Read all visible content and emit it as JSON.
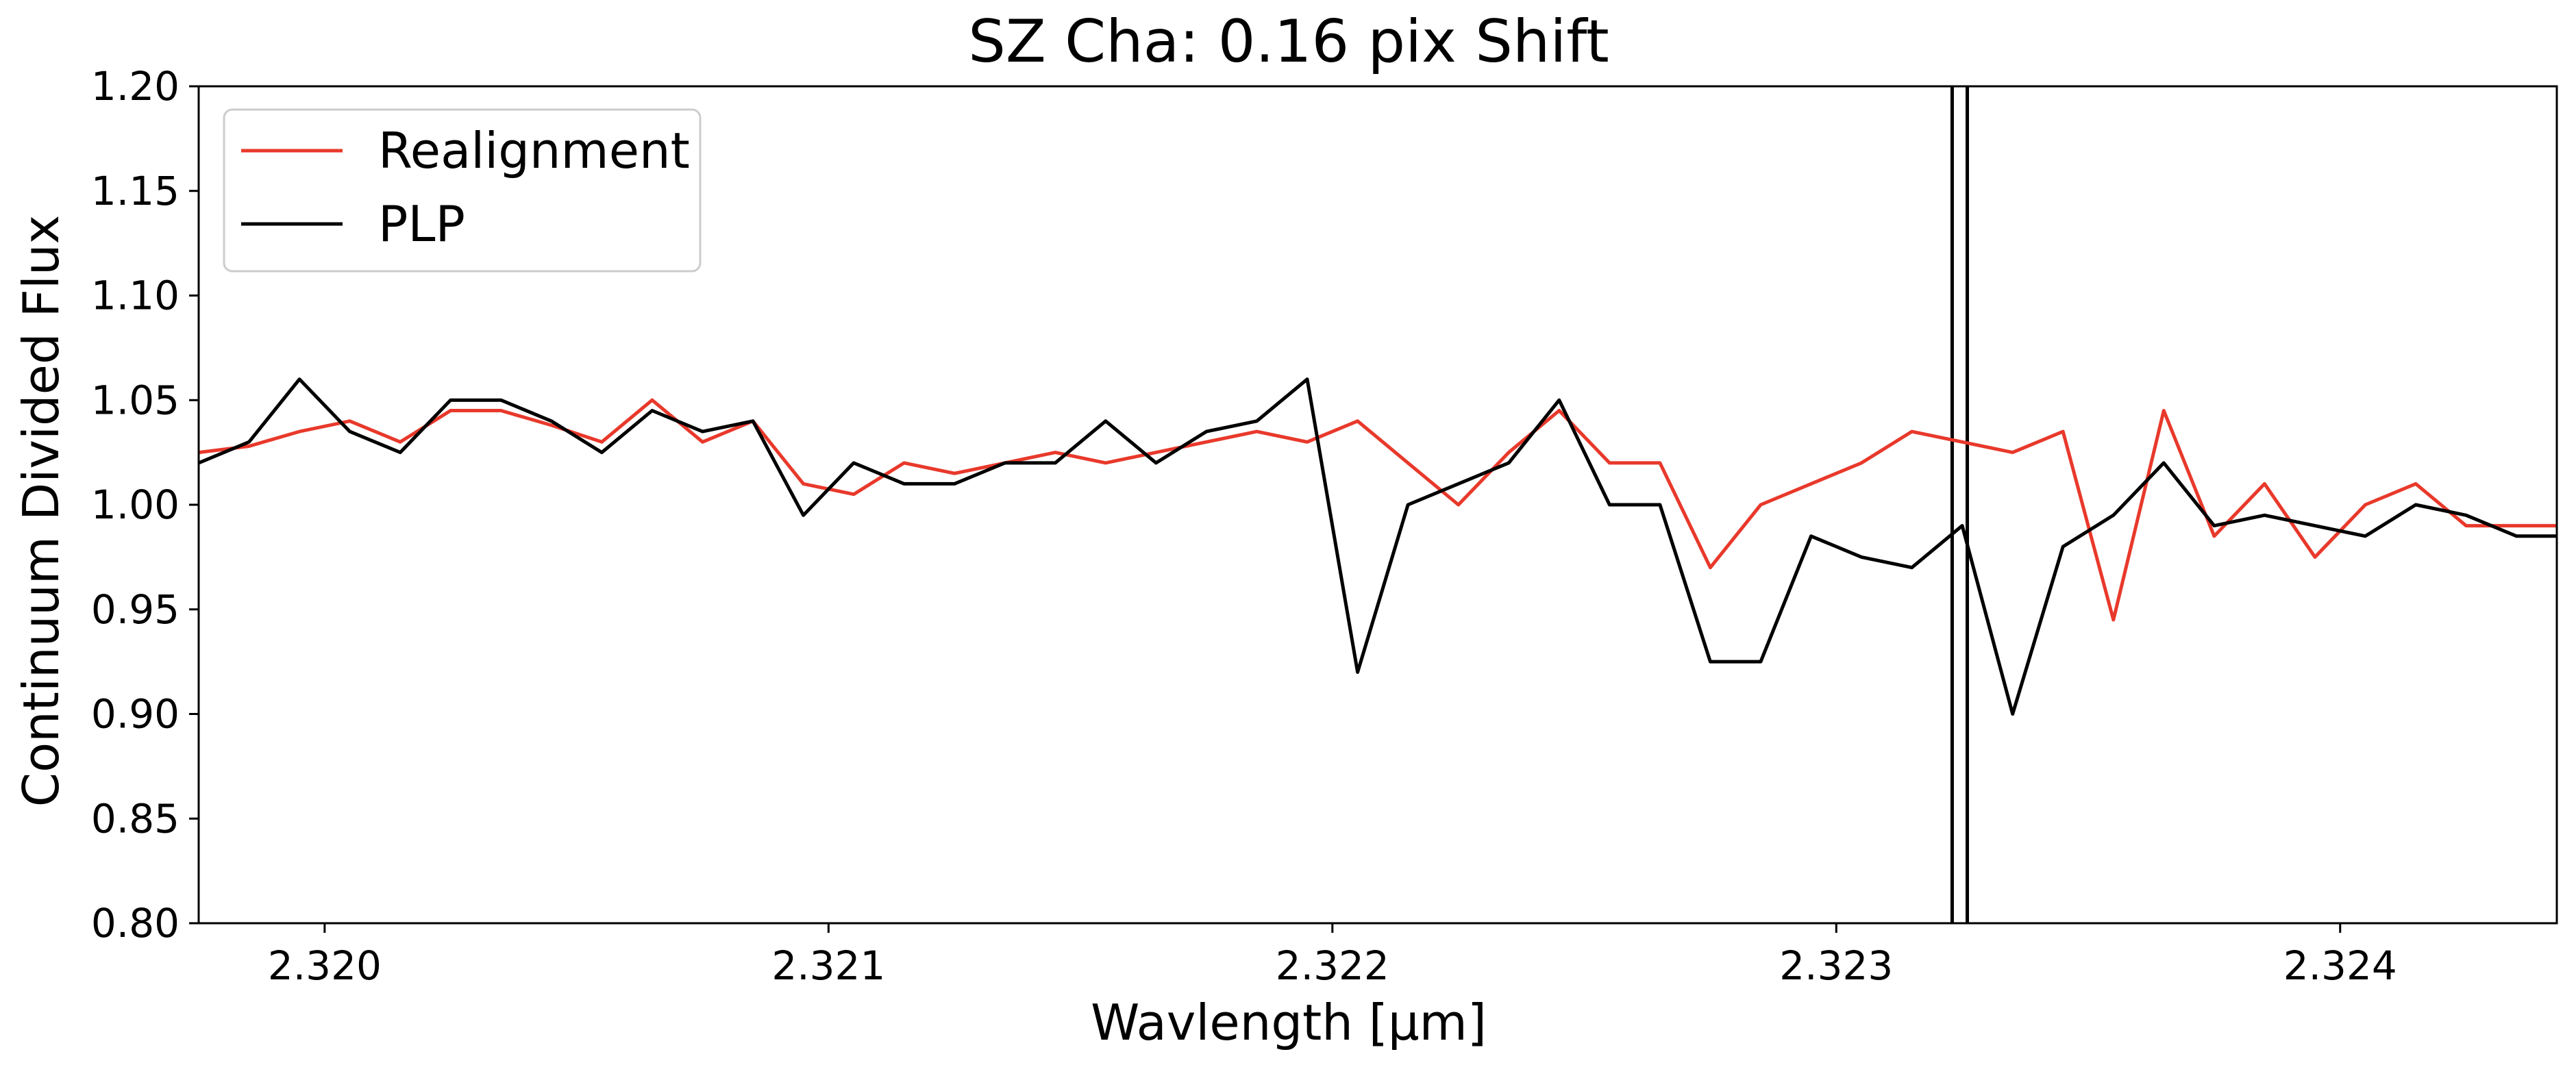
{
  "chart_data": {
    "type": "line",
    "title": "SZ Cha: 0.16 pix Shift",
    "xlabel": "Wavlength [μm]",
    "ylabel": "Continuum Divided Flux",
    "xlim": [
      2.31975,
      2.32443
    ],
    "ylim": [
      0.8,
      1.2
    ],
    "xticks": [
      2.32,
      2.321,
      2.322,
      2.323,
      2.324
    ],
    "xtick_labels": [
      "2.320",
      "2.321",
      "2.322",
      "2.323",
      "2.324"
    ],
    "yticks": [
      0.8,
      0.85,
      0.9,
      0.95,
      1.0,
      1.05,
      1.1,
      1.15,
      1.2
    ],
    "ytick_labels": [
      "0.80",
      "0.85",
      "0.90",
      "0.95",
      "1.00",
      "1.05",
      "1.10",
      "1.15",
      "1.20"
    ],
    "grid": false,
    "legend_position": "top-left",
    "vlines": [
      2.32323,
      2.32326
    ],
    "series": [
      {
        "name": "Realignment",
        "color": "#e8392b",
        "x": [
          2.31975,
          2.31985,
          2.31995,
          2.32005,
          2.32015,
          2.32025,
          2.32035,
          2.32045,
          2.32055,
          2.32065,
          2.32075,
          2.32085,
          2.32095,
          2.32105,
          2.32115,
          2.32125,
          2.32135,
          2.32145,
          2.32155,
          2.32165,
          2.32175,
          2.32185,
          2.32195,
          2.32205,
          2.32215,
          2.32225,
          2.32235,
          2.32245,
          2.32255,
          2.32265,
          2.32275,
          2.32285,
          2.32295,
          2.32305,
          2.32315,
          2.32325,
          2.32335,
          2.32345,
          2.32355,
          2.32365,
          2.32375,
          2.32385,
          2.32395,
          2.32405,
          2.32415,
          2.32425,
          2.32435,
          2.32443
        ],
        "y": [
          1.025,
          1.028,
          1.035,
          1.04,
          1.03,
          1.045,
          1.045,
          1.038,
          1.03,
          1.05,
          1.03,
          1.04,
          1.01,
          1.005,
          1.02,
          1.015,
          1.02,
          1.025,
          1.02,
          1.025,
          1.03,
          1.035,
          1.03,
          1.04,
          1.02,
          1.0,
          1.025,
          1.045,
          1.02,
          1.02,
          0.97,
          1.0,
          1.01,
          1.02,
          1.035,
          1.03,
          1.025,
          1.035,
          0.945,
          1.045,
          0.985,
          1.01,
          0.975,
          1.0,
          1.01,
          0.99,
          0.99,
          0.99
        ]
      },
      {
        "name": "PLP",
        "color": "#000000",
        "x": [
          2.31975,
          2.31985,
          2.31995,
          2.32005,
          2.32015,
          2.32025,
          2.32035,
          2.32045,
          2.32055,
          2.32065,
          2.32075,
          2.32085,
          2.32095,
          2.32105,
          2.32115,
          2.32125,
          2.32135,
          2.32145,
          2.32155,
          2.32165,
          2.32175,
          2.32185,
          2.32195,
          2.32205,
          2.32215,
          2.32225,
          2.32235,
          2.32245,
          2.32255,
          2.32265,
          2.32275,
          2.32285,
          2.32295,
          2.32305,
          2.32315,
          2.32325,
          2.32335,
          2.32345,
          2.32355,
          2.32365,
          2.32375,
          2.32385,
          2.32395,
          2.32405,
          2.32415,
          2.32425,
          2.32435,
          2.32443
        ],
        "y": [
          1.02,
          1.03,
          1.06,
          1.035,
          1.025,
          1.05,
          1.05,
          1.04,
          1.025,
          1.045,
          1.035,
          1.04,
          0.995,
          1.02,
          1.01,
          1.01,
          1.02,
          1.02,
          1.04,
          1.02,
          1.035,
          1.04,
          1.06,
          0.92,
          1.0,
          1.01,
          1.02,
          1.05,
          1.0,
          1.0,
          0.925,
          0.925,
          0.985,
          0.975,
          0.97,
          0.99,
          0.9,
          0.98,
          0.995,
          1.02,
          0.99,
          0.995,
          0.99,
          0.985,
          1.0,
          0.995,
          0.985,
          0.985
        ]
      }
    ]
  }
}
